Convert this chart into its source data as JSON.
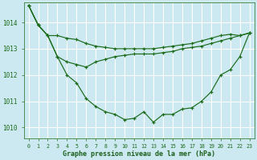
{
  "background_color": "#cce8f0",
  "plot_bg_color": "#cce8f0",
  "grid_color": "#ffffff",
  "line_color": "#1a6b1a",
  "marker_color": "#1a6b1a",
  "xlabel": "Graphe pression niveau de la mer (hPa)",
  "xlabel_color": "#1a5f1a",
  "tick_color": "#1a6b1a",
  "ylim": [
    1009.6,
    1014.75
  ],
  "xlim": [
    -0.5,
    23.5
  ],
  "yticks": [
    1010,
    1011,
    1012,
    1013,
    1014
  ],
  "xticks": [
    0,
    1,
    2,
    3,
    4,
    5,
    6,
    7,
    8,
    9,
    10,
    11,
    12,
    13,
    14,
    15,
    16,
    17,
    18,
    19,
    20,
    21,
    22,
    23
  ],
  "s1": [
    1014.65,
    1013.9,
    1013.5,
    1013.5,
    1013.4,
    1013.35,
    1013.2,
    1013.1,
    1013.05,
    1013.0,
    1013.0,
    1013.0,
    1013.0,
    1013.0,
    1013.05,
    1013.1,
    1013.15,
    1013.2,
    1013.3,
    1013.4,
    1013.5,
    1013.55,
    1013.5,
    1013.6
  ],
  "s2": [
    1014.65,
    1013.9,
    1013.5,
    1012.7,
    1012.5,
    1012.4,
    1012.3,
    1012.5,
    1012.6,
    1012.7,
    1012.75,
    1012.8,
    1012.8,
    1012.8,
    1012.85,
    1012.9,
    1013.0,
    1013.05,
    1013.1,
    1013.2,
    1013.3,
    1013.4,
    1013.5,
    1013.6
  ],
  "s3": [
    1014.65,
    1013.9,
    1013.5,
    1012.7,
    1012.0,
    1011.7,
    1011.1,
    1010.8,
    1010.6,
    1010.5,
    1010.3,
    1010.35,
    1010.6,
    1010.2,
    1010.5,
    1010.5,
    1010.7,
    1010.75,
    1011.0,
    1011.35,
    1012.0,
    1012.2,
    1012.7,
    1013.6
  ]
}
